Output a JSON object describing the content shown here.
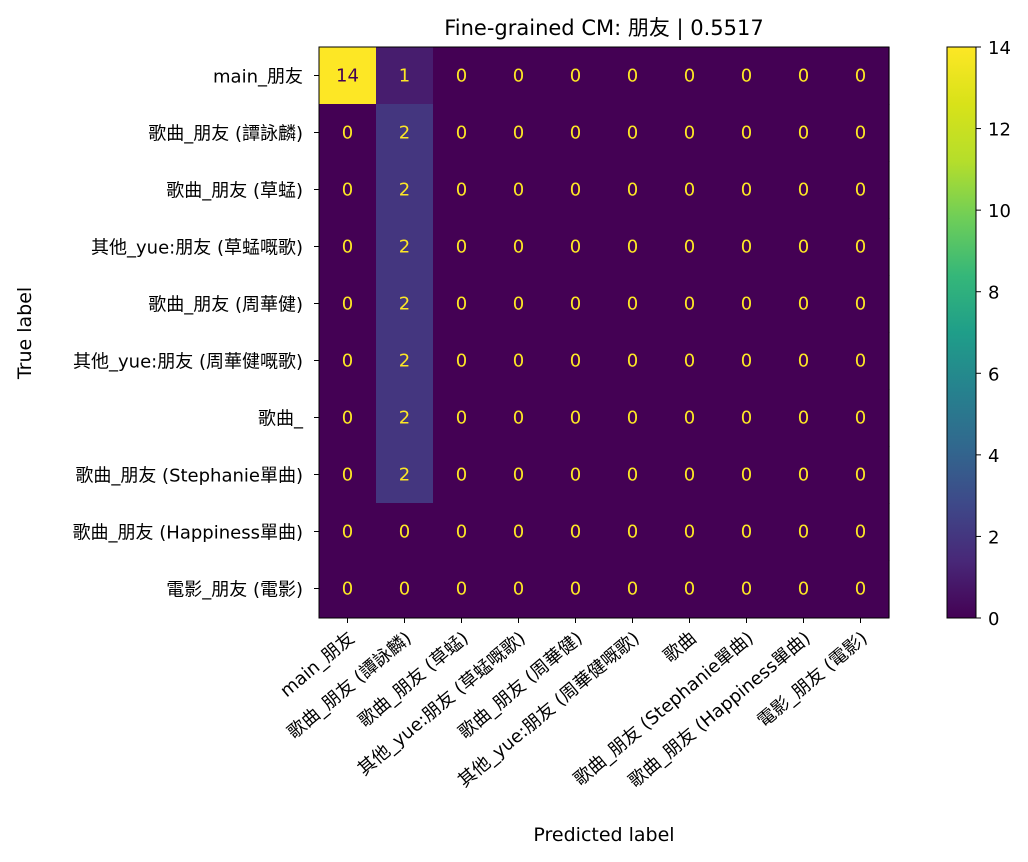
{
  "chart_data": {
    "type": "heatmap",
    "title": "Fine-grained CM: 朋友 | 0.5517",
    "xlabel": "Predicted label",
    "ylabel": "True label",
    "row_labels": [
      "main_朋友",
      "歌曲_朋友 (譚詠麟)",
      "歌曲_朋友 (草蜢)",
      "其他_yue:朋友 (草蜢嘅歌)",
      "歌曲_朋友 (周華健)",
      "其他_yue:朋友 (周華健嘅歌)",
      "歌曲_",
      "歌曲_朋友 (Stephanie單曲)",
      "歌曲_朋友 (Happiness單曲)",
      "電影_朋友 (電影)"
    ],
    "col_labels": [
      "main_朋友",
      "歌曲_朋友 (譚詠麟)",
      "歌曲_朋友 (草蜢)",
      "其他_yue:朋友 (草蜢嘅歌)",
      "歌曲_朋友 (周華健)",
      "其他_yue:朋友 (周華健嘅歌)",
      "歌曲",
      "歌曲_朋友 (Stephanie單曲)",
      "歌曲_朋友 (Happiness單曲)",
      "電影_朋友 (電影)"
    ],
    "matrix": [
      [
        14,
        1,
        0,
        0,
        0,
        0,
        0,
        0,
        0,
        0
      ],
      [
        0,
        2,
        0,
        0,
        0,
        0,
        0,
        0,
        0,
        0
      ],
      [
        0,
        2,
        0,
        0,
        0,
        0,
        0,
        0,
        0,
        0
      ],
      [
        0,
        2,
        0,
        0,
        0,
        0,
        0,
        0,
        0,
        0
      ],
      [
        0,
        2,
        0,
        0,
        0,
        0,
        0,
        0,
        0,
        0
      ],
      [
        0,
        2,
        0,
        0,
        0,
        0,
        0,
        0,
        0,
        0
      ],
      [
        0,
        2,
        0,
        0,
        0,
        0,
        0,
        0,
        0,
        0
      ],
      [
        0,
        2,
        0,
        0,
        0,
        0,
        0,
        0,
        0,
        0
      ],
      [
        0,
        0,
        0,
        0,
        0,
        0,
        0,
        0,
        0,
        0
      ],
      [
        0,
        0,
        0,
        0,
        0,
        0,
        0,
        0,
        0,
        0
      ]
    ],
    "colorbar": {
      "colormap": "viridis",
      "range": [
        0,
        14
      ],
      "ticks": [
        "0",
        "2",
        "4",
        "6",
        "8",
        "10",
        "12",
        "14"
      ]
    },
    "grid": false
  }
}
